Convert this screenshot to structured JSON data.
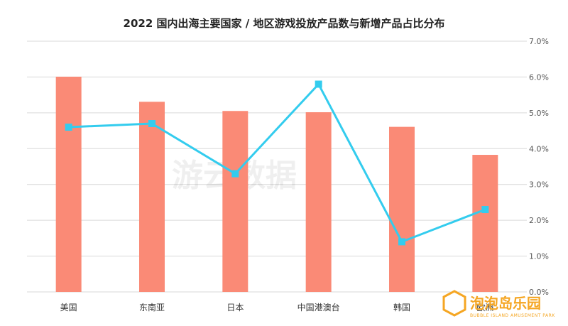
{
  "chart_data": {
    "type": "bar+line",
    "title": "2022 国内出海主要国家 / 地区游戏投放产品数与新增产品占比分布",
    "categories": [
      "美国",
      "东南亚",
      "日本",
      "中国港澳台",
      "韩国",
      "欧洲"
    ],
    "series": [
      {
        "kind": "bar",
        "axis": "left",
        "values": [
          5150,
          4550,
          4330,
          4300,
          3950,
          3280
        ]
      },
      {
        "kind": "line",
        "axis": "right",
        "values": [
          4.6,
          4.7,
          3.3,
          5.8,
          1.4,
          2.3
        ]
      }
    ],
    "y_left_range": [
      0,
      6000
    ],
    "y_right_range": [
      0,
      7
    ],
    "y_right_ticks": [
      "0.0%",
      "1.0%",
      "2.0%",
      "3.0%",
      "4.0%",
      "5.0%",
      "6.0%",
      "7.0%"
    ],
    "colors": {
      "bar": "#fa8a76",
      "line": "#33ccee",
      "grid": "#d9d9d9"
    },
    "grid": true,
    "legend": "none"
  },
  "watermark": {
    "text": "游云数据"
  },
  "logo": {
    "name": "泡泡岛乐园",
    "sub": "BUBBLE ISLAND AMUSEMENT PARK"
  }
}
